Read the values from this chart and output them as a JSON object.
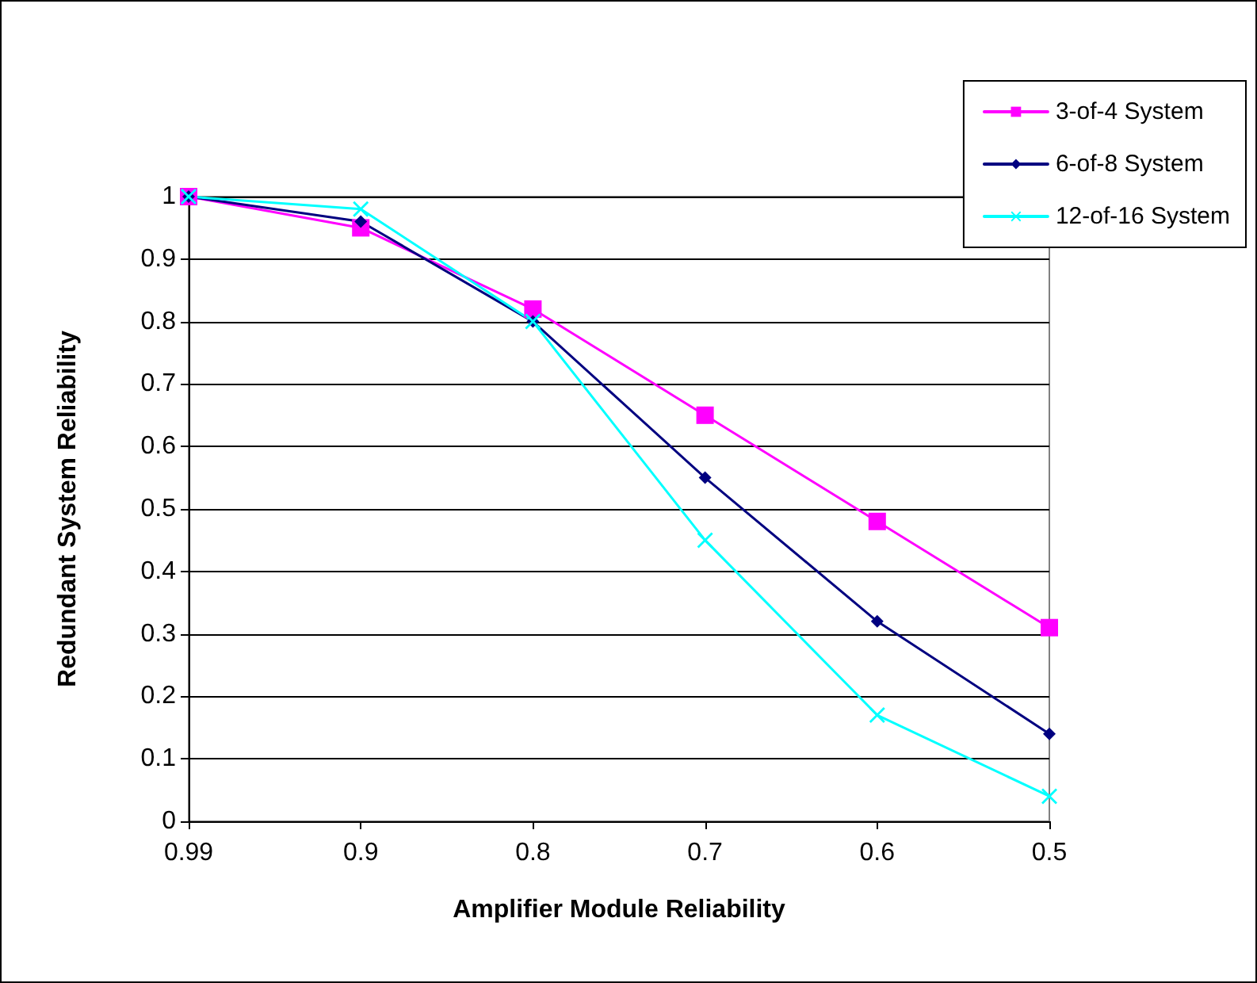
{
  "chart_data": {
    "type": "line",
    "xlabel": "Amplifier Module Reliability",
    "ylabel": "Redundant System Reliability",
    "categories": [
      "0.99",
      "0.9",
      "0.8",
      "0.7",
      "0.6",
      "0.5"
    ],
    "series": [
      {
        "name": "3-of-4 System",
        "color": "#ff00ff",
        "marker": "square",
        "values": [
          1.0,
          0.95,
          0.82,
          0.65,
          0.48,
          0.31
        ]
      },
      {
        "name": "6-of-8 System",
        "color": "#000080",
        "marker": "diamond",
        "values": [
          1.0,
          0.96,
          0.8,
          0.55,
          0.32,
          0.14
        ]
      },
      {
        "name": "12-of-16 System",
        "color": "#00ffff",
        "marker": "cross",
        "values": [
          1.0,
          0.98,
          0.8,
          0.45,
          0.17,
          0.04
        ]
      }
    ],
    "ylim": [
      0,
      1
    ],
    "yticks": [
      0,
      0.1,
      0.2,
      0.3,
      0.4,
      0.5,
      0.6,
      0.7,
      0.8,
      0.9,
      1
    ],
    "grid": "y",
    "legend": "top right",
    "line_style": "solid"
  }
}
